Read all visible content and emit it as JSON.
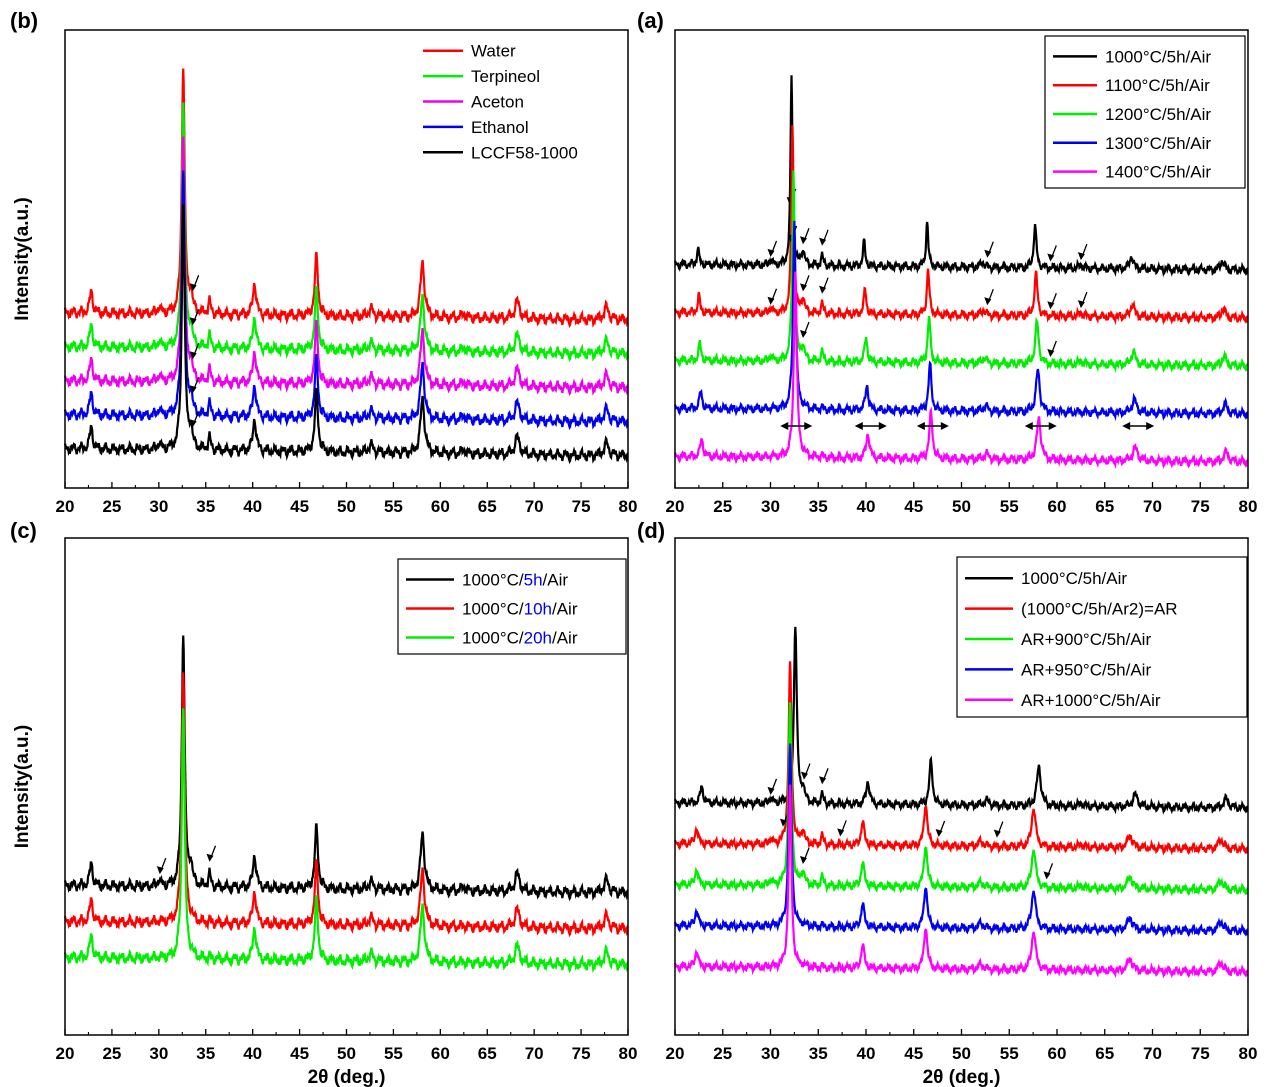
{
  "figure": {
    "ylabel": "Intensity(a.u.)",
    "xlabel": "2θ (deg.)"
  },
  "chart_data": [
    {
      "id": "b",
      "panel_label": "(b)",
      "type": "line",
      "xlabel": "",
      "ylabel": "Intensity(a.u.)",
      "xlim": [
        20,
        80
      ],
      "xticks": [
        20,
        25,
        30,
        35,
        40,
        45,
        50,
        55,
        60,
        65,
        70,
        75,
        80
      ],
      "legend_position": "top-right",
      "series": [
        {
          "name": "Water",
          "color": "#ff0000",
          "offset": 4,
          "impurity_arrows": [
            33.6
          ]
        },
        {
          "name": "Terpineol",
          "color": "#00ee00",
          "offset": 3,
          "impurity_arrows": [
            33.6
          ]
        },
        {
          "name": "Aceton",
          "color": "#ee00ee",
          "offset": 2,
          "impurity_arrows": [
            33.6
          ]
        },
        {
          "name": "Ethanol",
          "color": "#0000ee",
          "offset": 1,
          "impurity_arrows": [
            33.6
          ]
        },
        {
          "name": "LCCF58-1000",
          "color": "#000000",
          "offset": 0,
          "impurity_arrows": [
            33.6
          ]
        }
      ]
    },
    {
      "id": "a",
      "panel_label": "(a)",
      "type": "line",
      "xlabel": "",
      "ylabel": "",
      "xlim": [
        20,
        80
      ],
      "xticks": [
        20,
        25,
        30,
        35,
        40,
        45,
        50,
        55,
        60,
        65,
        70,
        75,
        80
      ],
      "legend_position": "top-right",
      "series": [
        {
          "name": "1000°C/5h/Air",
          "color": "#000000",
          "offset": 4,
          "impurity_arrows": [
            30,
            32,
            33.4,
            35.4,
            52.7,
            59.3,
            62.5
          ]
        },
        {
          "name": "1100°C/5h/Air",
          "color": "#ff0000",
          "offset": 3,
          "impurity_arrows": [
            30,
            32.1,
            33.4,
            35.4,
            52.7,
            59.3,
            62.5
          ]
        },
        {
          "name": "1200°C/5h/Air",
          "color": "#00ee00",
          "offset": 2,
          "impurity_arrows": [
            33.4,
            59.3
          ]
        },
        {
          "name": "1300°C/5h/Air",
          "color": "#0000ee",
          "offset": 1,
          "impurity_arrows": []
        },
        {
          "name": "1400°C/5h/Air",
          "color": "#ff00ff",
          "offset": 0,
          "impurity_arrows": []
        }
      ],
      "peak_shift_markers": [
        32.7,
        40.5,
        47.0,
        58.3,
        68.5
      ]
    },
    {
      "id": "c",
      "panel_label": "(c)",
      "type": "line",
      "xlabel": "2θ (deg.)",
      "ylabel": "Intensity(a.u.)",
      "xlim": [
        20,
        80
      ],
      "xticks": [
        20,
        25,
        30,
        35,
        40,
        45,
        50,
        55,
        60,
        65,
        70,
        75,
        80
      ],
      "legend_position": "top-right",
      "series": [
        {
          "name": "1000°C/5h/Air",
          "name_parts": [
            "1000°C/",
            "5h",
            "/Air"
          ],
          "color": "#000000",
          "offset": 2,
          "impurity_arrows": [
            30.1,
            35.4
          ]
        },
        {
          "name": "1000°C/10h/Air",
          "name_parts": [
            "1000°C/",
            "10h",
            "/Air"
          ],
          "color": "#ff0000",
          "offset": 1,
          "impurity_arrows": []
        },
        {
          "name": "1000°C/20h/Air",
          "name_parts": [
            "1000°C/",
            "20h",
            "/Air"
          ],
          "color": "#00ee00",
          "offset": 0,
          "impurity_arrows": []
        }
      ]
    },
    {
      "id": "d",
      "panel_label": "(d)",
      "type": "line",
      "xlabel": "2θ (deg.)",
      "ylabel": "",
      "xlim": [
        20,
        80
      ],
      "xticks": [
        20,
        25,
        30,
        35,
        40,
        45,
        50,
        55,
        60,
        65,
        70,
        75,
        80
      ],
      "legend_position": "top-right",
      "series": [
        {
          "name": "1000°C/5h/Air",
          "color": "#000000",
          "offset": 4,
          "impurity_arrows": [
            30,
            33.5,
            35.4
          ]
        },
        {
          "name": "(1000°C/5h/Ar2)=AR",
          "color": "#ff0000",
          "offset": 3,
          "impurity_arrows": [
            31.3,
            37.3,
            47.6,
            53.7
          ]
        },
        {
          "name": "AR+900°C/5h/Air",
          "color": "#00ee00",
          "offset": 2,
          "impurity_arrows": [
            33.4,
            58.9
          ]
        },
        {
          "name": "AR+950°C/5h/Air",
          "color": "#0000ee",
          "offset": 1,
          "impurity_arrows": []
        },
        {
          "name": "AR+1000°C/5h/Air",
          "color": "#ff00ff",
          "offset": 0,
          "impurity_arrows": []
        }
      ]
    }
  ]
}
